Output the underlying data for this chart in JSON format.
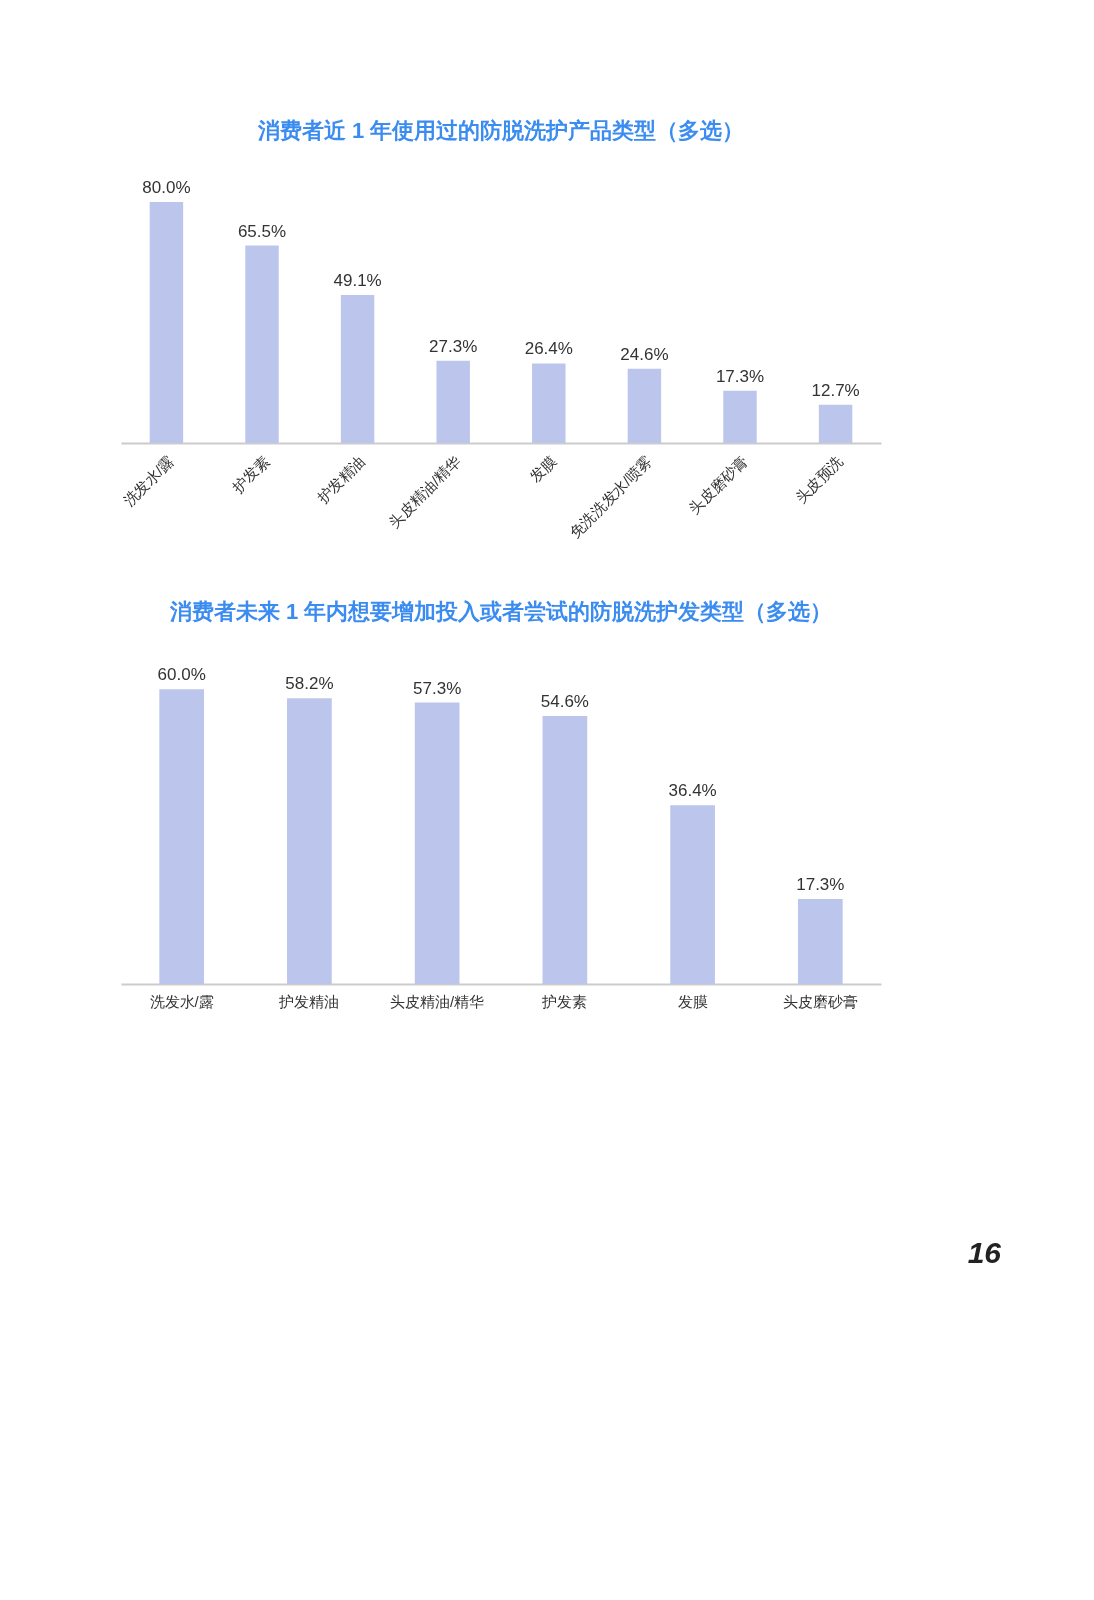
{
  "chart_data": [
    {
      "type": "bar",
      "title": "消费者近 1 年使用过的防脱洗护产品类型（多选）",
      "categories": [
        "洗发水/露",
        "护发素",
        "护发精油",
        "头皮精油/精华",
        "发膜",
        "免洗洗发水/喷雾",
        "头皮磨砂膏",
        "头皮预洗"
      ],
      "values": [
        80.0,
        65.5,
        49.1,
        27.3,
        26.4,
        24.6,
        17.3,
        12.7
      ],
      "value_labels": [
        "80.0%",
        "65.5%",
        "49.1%",
        "27.3%",
        "26.4%",
        "24.6%",
        "17.3%",
        "12.7%"
      ],
      "color": "#bcc6ec",
      "grid": false
    },
    {
      "type": "bar",
      "title": "消费者未来 1 年内想要增加投入或者尝试的防脱洗护发类型（多选）",
      "categories": [
        "洗发水/露",
        "护发精油",
        "头皮精油/精华",
        "护发素",
        "发膜",
        "头皮磨砂膏"
      ],
      "values": [
        60.0,
        58.2,
        57.3,
        54.6,
        36.4,
        17.3
      ],
      "value_labels": [
        "60.0%",
        "58.2%",
        "57.3%",
        "54.6%",
        "36.4%",
        "17.3%"
      ],
      "color": "#bcc6ec",
      "grid": false,
      "annotations": [
        "16"
      ]
    }
  ]
}
